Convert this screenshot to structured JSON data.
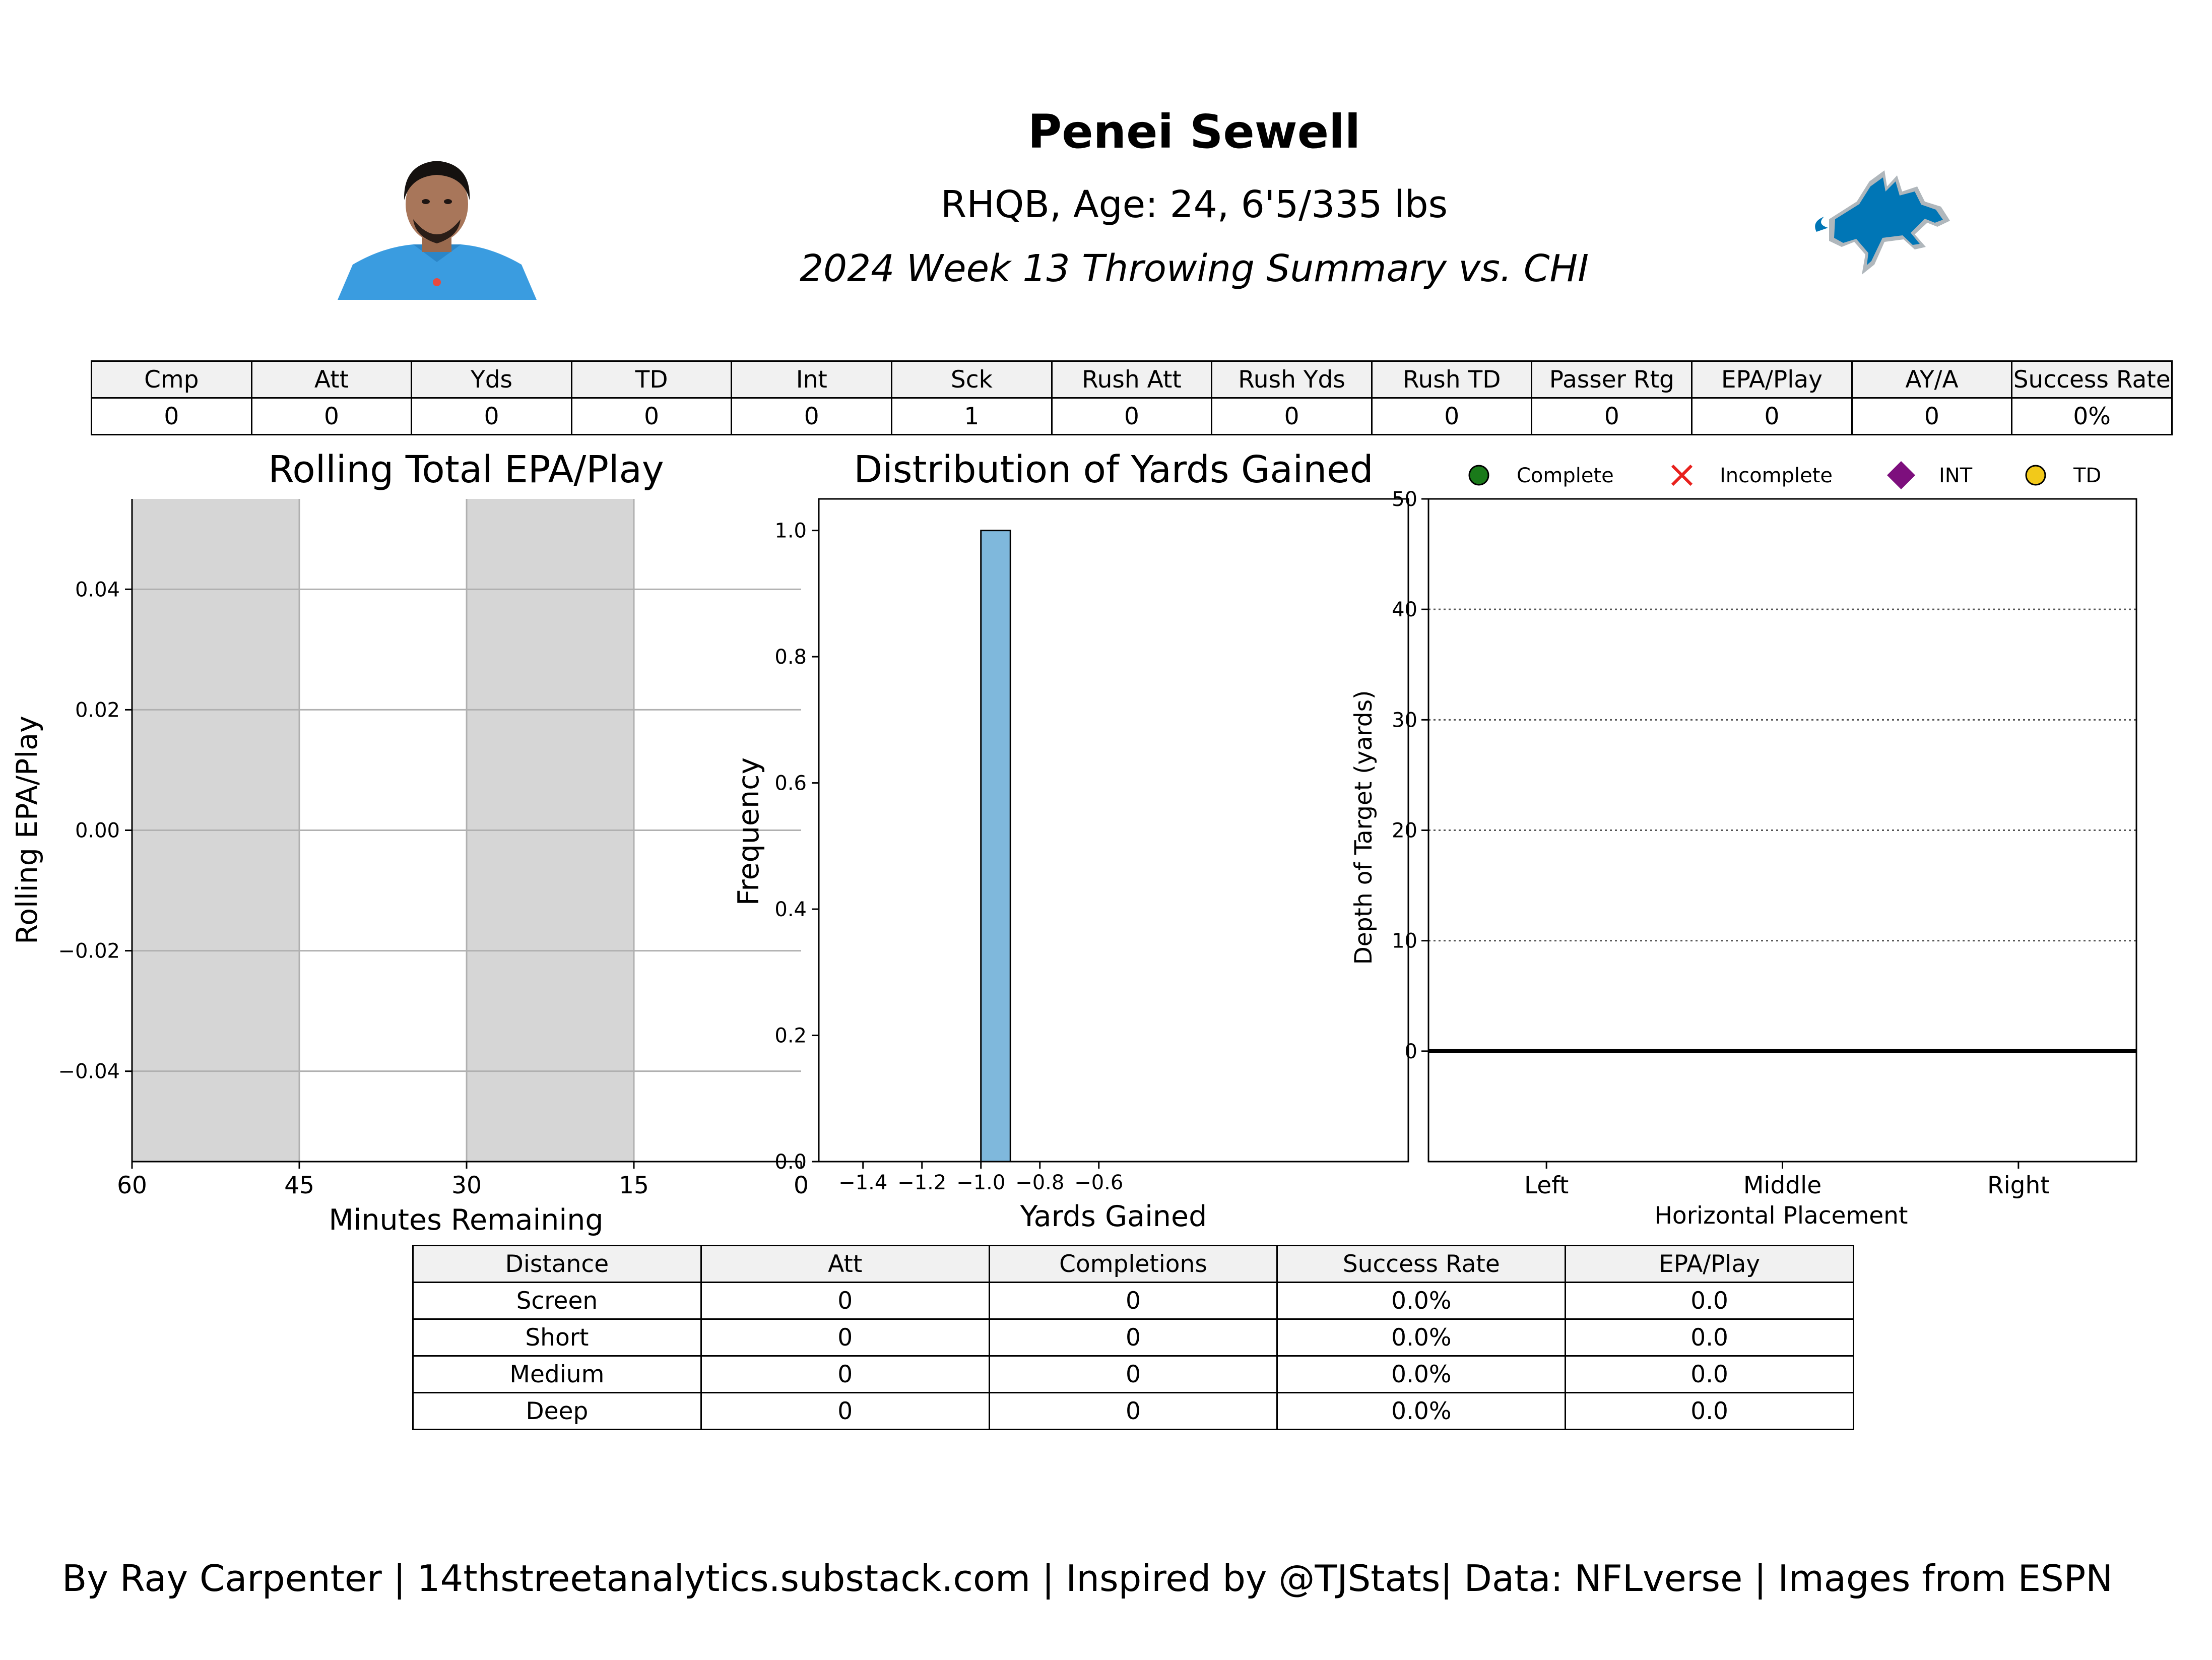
{
  "player": {
    "name": "Penei Sewell",
    "info": "RHQB, Age: 24, 6'5/335 lbs",
    "summary": "2024 Week 13 Throwing Summary vs. CHI"
  },
  "summary_table": {
    "headers": [
      "Cmp",
      "Att",
      "Yds",
      "TD",
      "Int",
      "Sck",
      "Rush Att",
      "Rush Yds",
      "Rush TD",
      "Passer Rtg",
      "EPA/Play",
      "AY/A",
      "Success Rate"
    ],
    "values": [
      "0",
      "0",
      "0",
      "0",
      "0",
      "1",
      "0",
      "0",
      "0",
      "0",
      "0",
      "0",
      "0%"
    ]
  },
  "legend": {
    "items": [
      {
        "label": "Complete",
        "marker": "circle",
        "color": "#1a7a1a"
      },
      {
        "label": "Incomplete",
        "marker": "x",
        "color": "#e8211d"
      },
      {
        "label": "INT",
        "marker": "diamond",
        "color": "#7d0f7d"
      },
      {
        "label": "TD",
        "marker": "circle",
        "color": "#f2c91a"
      }
    ]
  },
  "chart_data": [
    {
      "type": "line",
      "title": "Rolling Total EPA/Play",
      "xlabel": "Minutes Remaining",
      "ylabel": "Rolling EPA/Play",
      "xlim": [
        60,
        0
      ],
      "ylim": [
        -0.055,
        0.055
      ],
      "x_ticks": [
        "60",
        "45",
        "30",
        "15",
        "0"
      ],
      "y_ticks": [
        "0.04",
        "0.02",
        "0.00",
        "−0.02",
        "−0.04"
      ],
      "shaded_quarters": [
        [
          60,
          45
        ],
        [
          30,
          15
        ]
      ],
      "shade_color": "#d6d6d6",
      "grid": true,
      "series": []
    },
    {
      "type": "bar",
      "title": "Distribution of Yards Gained",
      "xlabel": "Yards Gained",
      "ylabel": "Frequency",
      "xlim": [
        -1.55,
        0.45
      ],
      "ylim": [
        0,
        1.05
      ],
      "x_ticks": [
        "−1.4",
        "−1.2",
        "−1.0",
        "−0.8",
        "−0.6"
      ],
      "y_ticks": [
        "1.0",
        "0.8",
        "0.6",
        "0.4",
        "0.2",
        "0.0"
      ],
      "bins": [
        {
          "x0": -1.5,
          "x1": -1.4,
          "value": 0
        },
        {
          "x0": -1.4,
          "x1": -1.3,
          "value": 0
        },
        {
          "x0": -1.3,
          "x1": -1.2,
          "value": 0
        },
        {
          "x0": -1.2,
          "x1": -1.1,
          "value": 0
        },
        {
          "x0": -1.1,
          "x1": -1.0,
          "value": 0
        },
        {
          "x0": -1.0,
          "x1": -0.9,
          "value": 1.0
        },
        {
          "x0": -0.9,
          "x1": -0.8,
          "value": 0
        },
        {
          "x0": -0.8,
          "x1": -0.7,
          "value": 0
        },
        {
          "x0": -0.7,
          "x1": -0.6,
          "value": 0
        },
        {
          "x0": -0.6,
          "x1": -0.5,
          "value": 0
        }
      ],
      "bar_color": "#7fb8dc"
    },
    {
      "type": "scatter",
      "xlabel": "Horizontal Placement",
      "ylabel": "Depth of Target (yards)",
      "categories": [
        "Left",
        "Middle",
        "Right"
      ],
      "ylim": [
        -10,
        50
      ],
      "y_ticks": [
        "50",
        "40",
        "30",
        "20",
        "10",
        "0"
      ],
      "grid": "dotted",
      "points": []
    }
  ],
  "distance_table": {
    "headers": [
      "Distance",
      "Att",
      "Completions",
      "Success Rate",
      "EPA/Play"
    ],
    "rows": [
      [
        "Screen",
        "0",
        "0",
        "0.0%",
        "0.0"
      ],
      [
        "Short",
        "0",
        "0",
        "0.0%",
        "0.0"
      ],
      [
        "Medium",
        "0",
        "0",
        "0.0%",
        "0.0"
      ],
      [
        "Deep",
        "0",
        "0",
        "0.0%",
        "0.0"
      ]
    ]
  },
  "footer": "By Ray Carpenter | 14thstreetanalytics.substack.com | Inspired by @TJStats| Data: NFLverse | Images from ESPN",
  "colors": {
    "lions_blue": "#0076b6",
    "lions_silver": "#b0b7bc",
    "jersey_blue": "#3a9ce0"
  }
}
